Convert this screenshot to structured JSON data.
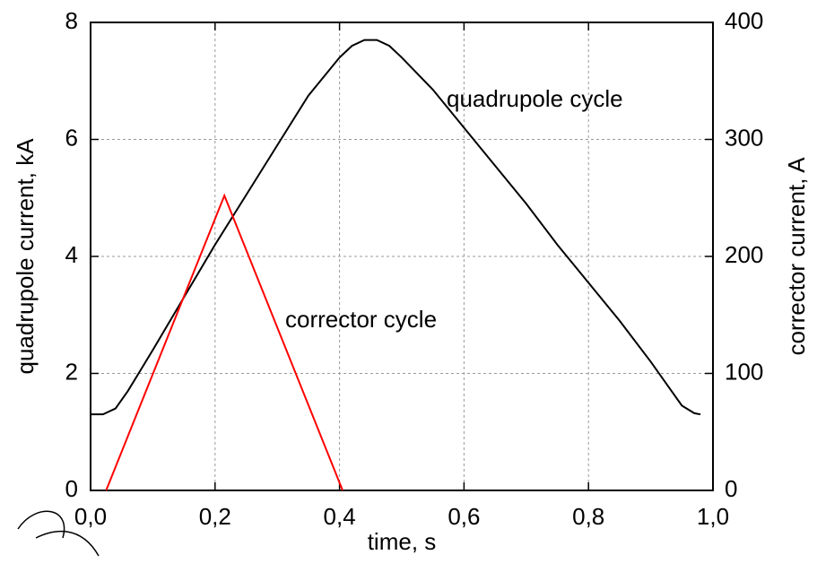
{
  "chart_data": {
    "type": "line",
    "xlabel": "time, s",
    "ylabel": "quadrupole current, kA",
    "y2label": "corrector current, A",
    "xlim": [
      0,
      1
    ],
    "ylim": [
      0,
      8
    ],
    "y2lim": [
      0,
      400
    ],
    "xticks": [
      {
        "value": 0,
        "label": "0,0"
      },
      {
        "value": 0.2,
        "label": "0,2"
      },
      {
        "value": 0.4,
        "label": "0,4"
      },
      {
        "value": 0.6,
        "label": "0,6"
      },
      {
        "value": 0.8,
        "label": "0,8"
      },
      {
        "value": 1,
        "label": "1,0"
      }
    ],
    "yticks": [
      0,
      2,
      4,
      6,
      8
    ],
    "y2ticks": [
      0,
      100,
      200,
      300,
      400
    ],
    "grid": true,
    "annotations": [
      "quadrupole cycle",
      "corrector cycle"
    ],
    "series": [
      {
        "color": "#000000",
        "x": [
          0,
          0.02,
          0.04,
          0.06,
          0.08,
          0.1,
          0.15,
          0.2,
          0.25,
          0.3,
          0.35,
          0.4,
          0.42,
          0.44,
          0.46,
          0.48,
          0.5,
          0.55,
          0.6,
          0.65,
          0.7,
          0.75,
          0.8,
          0.85,
          0.9,
          0.93,
          0.95,
          0.97,
          0.98
        ],
        "values": [
          1.3,
          1.3,
          1.4,
          1.7,
          2.05,
          2.4,
          3.3,
          4.2,
          5.05,
          5.9,
          6.75,
          7.4,
          7.6,
          7.7,
          7.7,
          7.6,
          7.4,
          6.85,
          6.2,
          5.55,
          4.9,
          4.2,
          3.55,
          2.9,
          2.2,
          1.75,
          1.45,
          1.32,
          1.3
        ]
      },
      {
        "color": "#ff0000",
        "axis": "y2",
        "x": [
          0.025,
          0.215,
          0.405
        ],
        "values": [
          0,
          252,
          0
        ]
      }
    ]
  }
}
